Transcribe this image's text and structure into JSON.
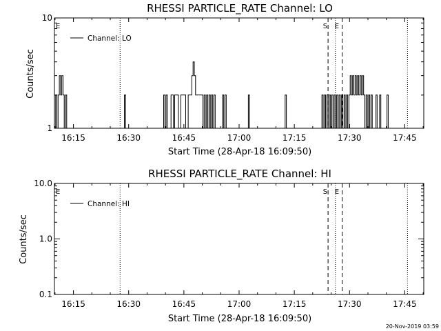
{
  "chart_data": [
    {
      "type": "line",
      "title": "RHESSI PARTICLE_RATE Channel: LO",
      "xlabel": "Start Time (28-Apr-18 16:09:50)",
      "ylabel": "Counts/sec",
      "y_scale": "log",
      "ylim": [
        1,
        10
      ],
      "xlim": [
        "16:09:50",
        "17:50:10"
      ],
      "x_tick_labels": [
        "16:15",
        "16:30",
        "16:45",
        "17:00",
        "17:15",
        "17:30",
        "17:45"
      ],
      "y_tick_labels": [
        "1",
        "10"
      ],
      "legend": {
        "position": "top-left",
        "entries": [
          "Channel: LO"
        ]
      },
      "series": [
        {
          "name": "Channel: LO",
          "x": [
            "16:09:50",
            "16:10:10",
            "16:10:30",
            "16:10:50",
            "16:11:10",
            "16:11:30",
            "16:11:50",
            "16:12:10",
            "16:12:30",
            "16:12:50",
            "16:13:10",
            "16:13:30",
            "16:28:30",
            "16:28:50",
            "16:29:10",
            "16:39:10",
            "16:39:30",
            "16:39:50",
            "16:40:10",
            "16:40:30",
            "16:41:30",
            "16:42:10",
            "16:42:30",
            "16:43:30",
            "16:44:10",
            "16:45:30",
            "16:46:10",
            "16:47:10",
            "16:47:30",
            "16:47:50",
            "16:48:10",
            "16:48:30",
            "16:50:10",
            "16:50:30",
            "16:50:50",
            "16:51:10",
            "16:51:30",
            "16:51:50",
            "16:52:10",
            "16:52:30",
            "16:52:50",
            "16:53:10",
            "16:53:30",
            "16:54:10",
            "16:55:10",
            "16:55:30",
            "16:55:50",
            "16:56:10",
            "16:56:30",
            "17:02:10",
            "17:02:30",
            "17:02:50",
            "17:12:10",
            "17:12:30",
            "17:12:50",
            "17:22:10",
            "17:22:30",
            "17:22:50",
            "17:23:10",
            "17:23:30",
            "17:23:50",
            "17:24:10",
            "17:24:30",
            "17:24:50",
            "17:25:10",
            "17:25:30",
            "17:25:50",
            "17:26:10",
            "17:26:30",
            "17:26:50",
            "17:27:10",
            "17:27:30",
            "17:27:50",
            "17:28:10",
            "17:28:30",
            "17:28:50",
            "17:29:10",
            "17:29:30",
            "17:29:50",
            "17:30:10",
            "17:30:30",
            "17:30:50",
            "17:31:10",
            "17:31:30",
            "17:31:50",
            "17:32:10",
            "17:32:30",
            "17:32:50",
            "17:33:10",
            "17:33:30",
            "17:33:50",
            "17:34:10",
            "17:34:30",
            "17:34:50",
            "17:35:10",
            "17:35:30",
            "17:35:50",
            "17:36:10",
            "17:37:10",
            "17:37:30",
            "17:38:10",
            "17:38:30",
            "17:40:10",
            "17:40:30",
            "17:40:50"
          ],
          "y": [
            1,
            2,
            1,
            2,
            3,
            2,
            3,
            2,
            1,
            2,
            1,
            1,
            1,
            2,
            1,
            1,
            2,
            1,
            2,
            1,
            2,
            1,
            2,
            1,
            2,
            1,
            2,
            3,
            4,
            3,
            2,
            2,
            1,
            2,
            1,
            2,
            1,
            2,
            1,
            2,
            1,
            2,
            1,
            1,
            1,
            2,
            1,
            2,
            1,
            1,
            2,
            1,
            1,
            2,
            1,
            1,
            2,
            1,
            2,
            1,
            2,
            1,
            2,
            1,
            2,
            1,
            2,
            1,
            2,
            1,
            2,
            1,
            2,
            1,
            2,
            1,
            2,
            1,
            2,
            3,
            2,
            3,
            2,
            3,
            2,
            3,
            2,
            3,
            2,
            3,
            2,
            1,
            2,
            1,
            2,
            1,
            2,
            1,
            2,
            1,
            2,
            1,
            2,
            1,
            1
          ]
        }
      ],
      "annotations": [
        {
          "label": "E",
          "x": "16:09:50"
        },
        {
          "label": "S",
          "x": "17:24:10"
        },
        {
          "label": "E",
          "x": "17:26:10"
        }
      ],
      "vertical_lines": [
        {
          "style": "dotted",
          "x": "16:27:40"
        },
        {
          "style": "dashed",
          "x": "17:24:10"
        },
        {
          "style": "dotted",
          "x": "17:26:10"
        },
        {
          "style": "dashed",
          "x": "17:28:00"
        },
        {
          "style": "dotted",
          "x": "17:45:45"
        }
      ]
    },
    {
      "type": "line",
      "title": "RHESSI PARTICLE_RATE Channel: HI",
      "xlabel": "Start Time (28-Apr-18 16:09:50)",
      "ylabel": "Counts/sec",
      "y_scale": "log",
      "ylim": [
        0.1,
        10
      ],
      "xlim": [
        "16:09:50",
        "17:50:10"
      ],
      "x_tick_labels": [
        "16:15",
        "16:30",
        "16:45",
        "17:00",
        "17:15",
        "17:30",
        "17:45"
      ],
      "y_tick_labels": [
        "0.1",
        "1.0",
        "10.0"
      ],
      "legend": {
        "position": "top-left",
        "entries": [
          "Channel: HI"
        ]
      },
      "series": [
        {
          "name": "Channel: HI",
          "x": [],
          "y": []
        }
      ],
      "annotations": [
        {
          "label": "E",
          "x": "16:09:50"
        },
        {
          "label": "S",
          "x": "17:24:10"
        },
        {
          "label": "E",
          "x": "17:26:10"
        }
      ],
      "vertical_lines": [
        {
          "style": "dotted",
          "x": "16:27:40"
        },
        {
          "style": "dashed",
          "x": "17:24:10"
        },
        {
          "style": "dotted",
          "x": "17:26:10"
        },
        {
          "style": "dashed",
          "x": "17:28:00"
        },
        {
          "style": "dotted",
          "x": "17:45:45"
        }
      ]
    }
  ],
  "footer": {
    "timestamp": "20-Nov-2019 03:59"
  }
}
